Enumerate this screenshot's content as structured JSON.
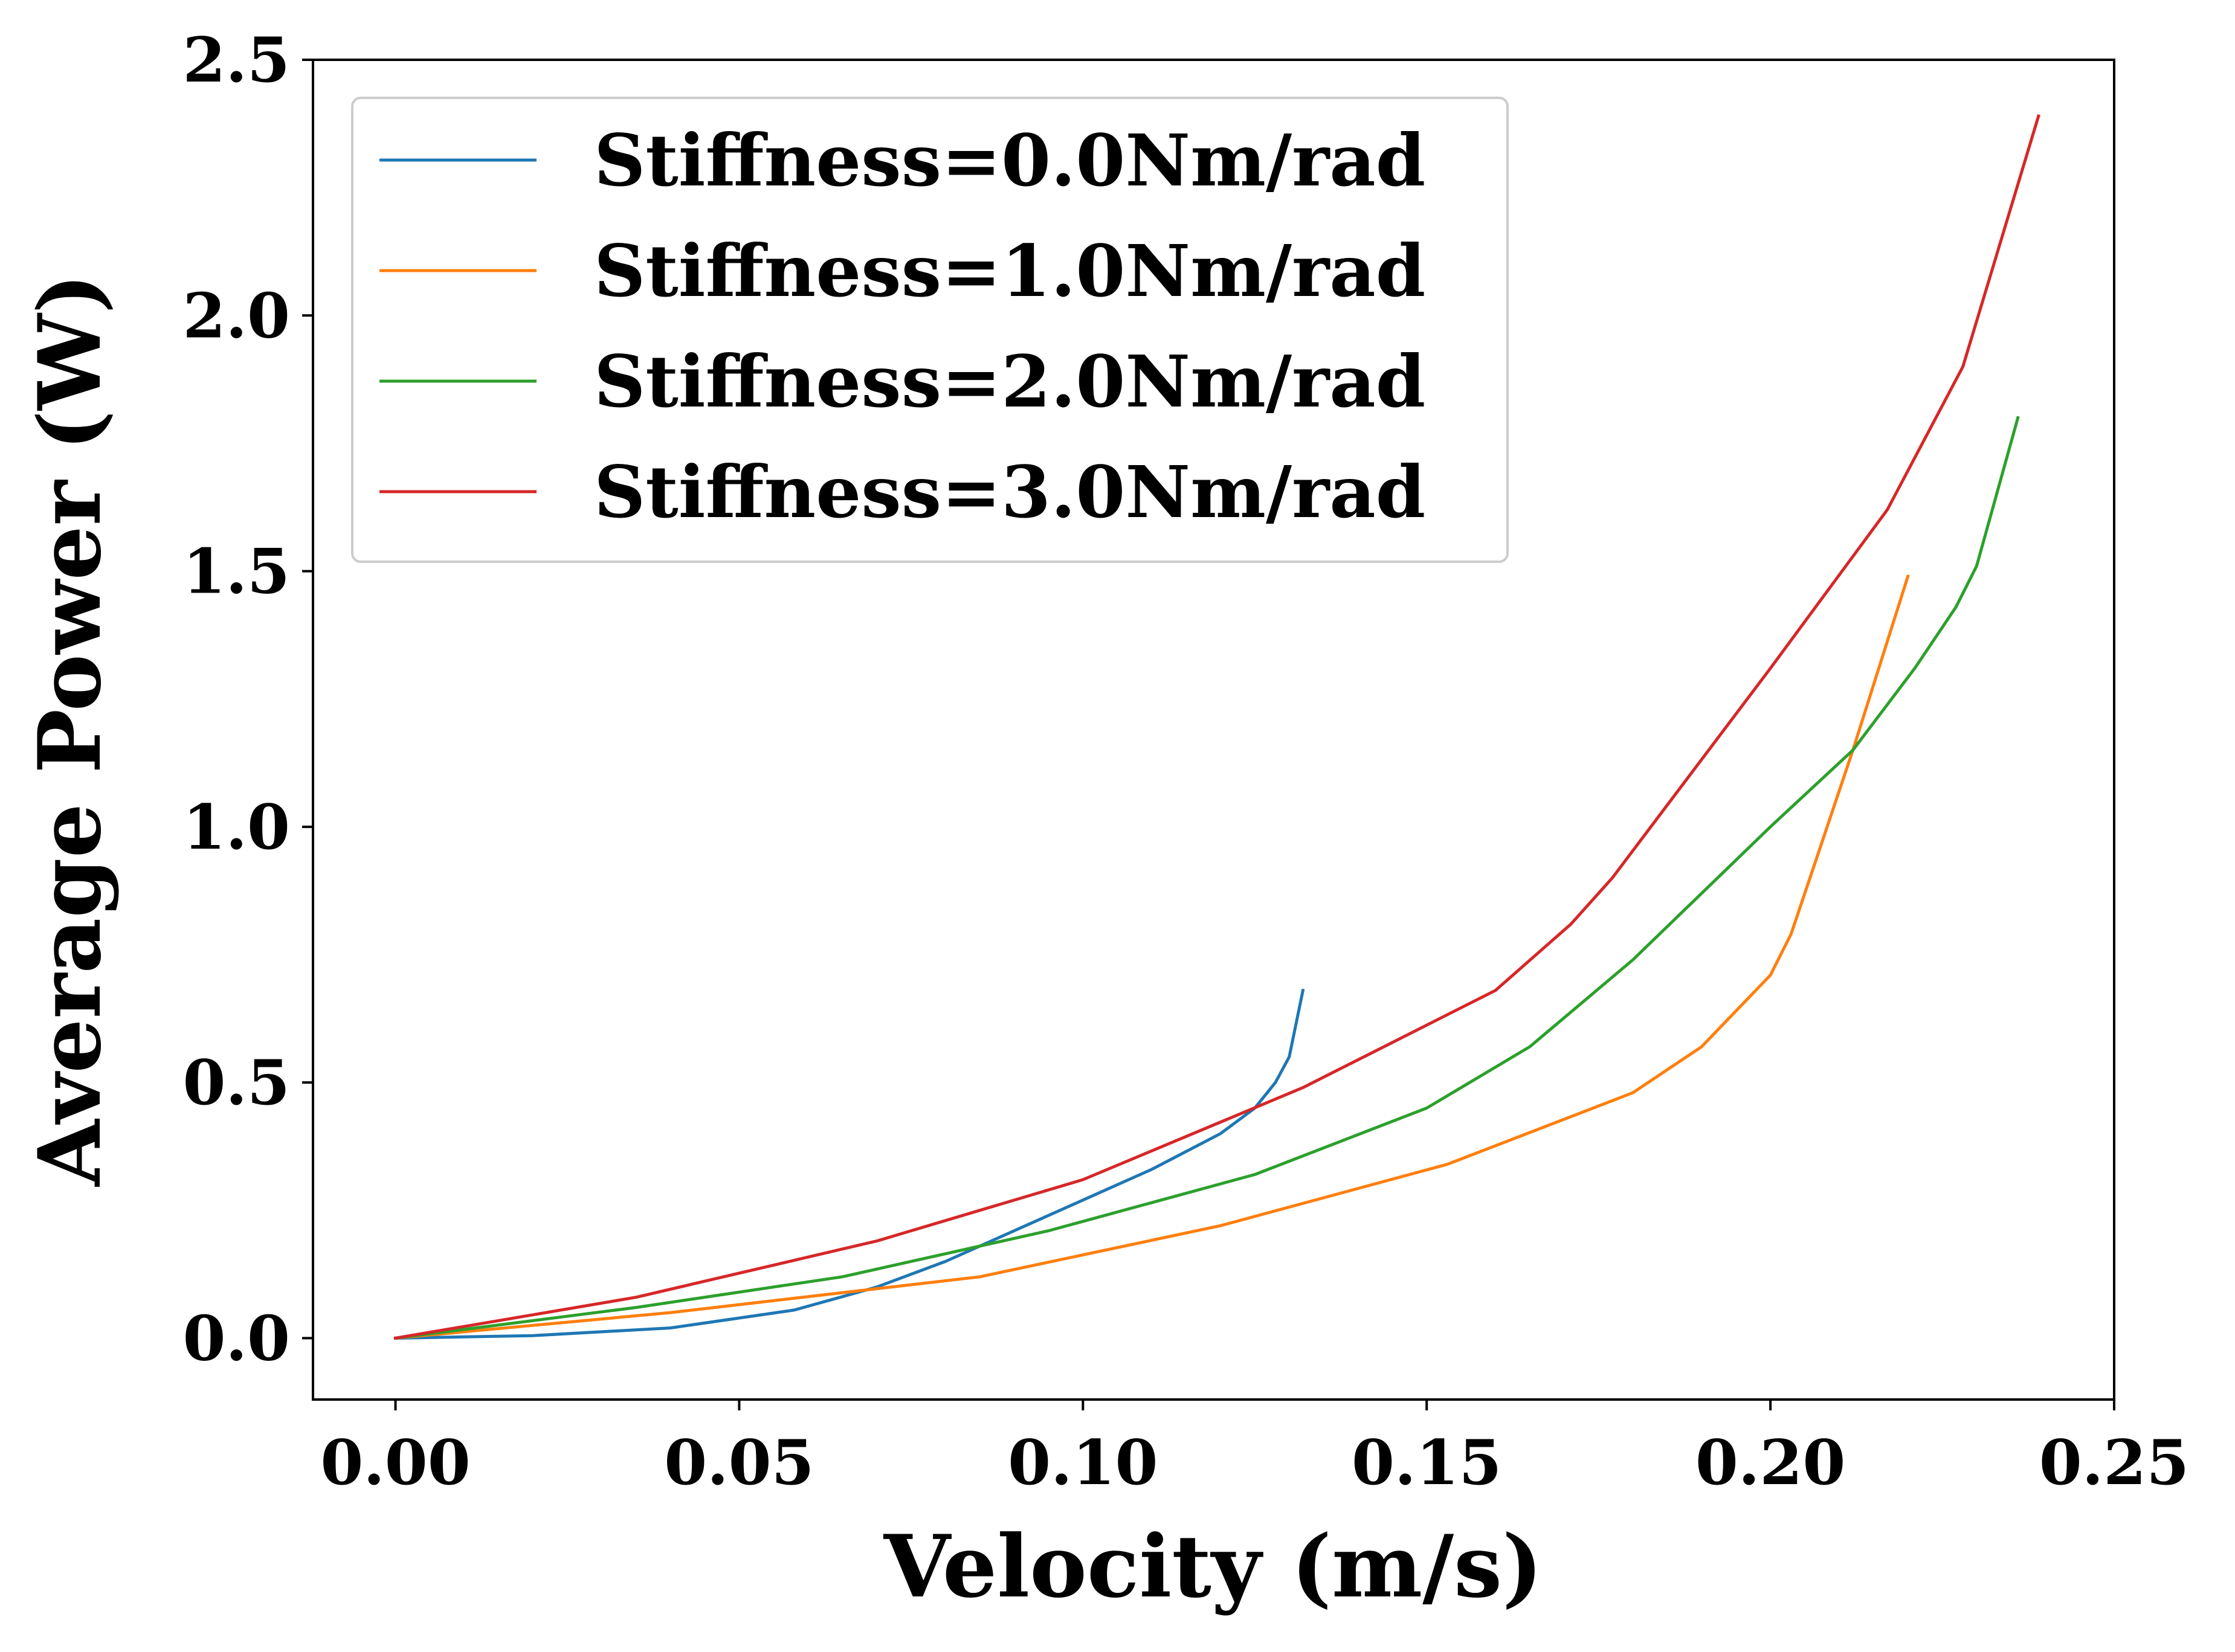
{
  "chart_data": {
    "type": "line",
    "title": "",
    "xlabel": "Velocity (m/s)",
    "ylabel": "Average Power (W)",
    "xlim": [
      -0.012,
      0.25
    ],
    "ylim": [
      -0.12,
      2.5
    ],
    "xticks": [
      0.0,
      0.05,
      0.1,
      0.15,
      0.2,
      0.25
    ],
    "xtick_labels": [
      "0.00",
      "0.05",
      "0.10",
      "0.15",
      "0.20",
      "0.25"
    ],
    "yticks": [
      0.0,
      0.5,
      1.0,
      1.5,
      2.0,
      2.5
    ],
    "ytick_labels": [
      "0.0",
      "0.5",
      "1.0",
      "1.5",
      "2.0",
      "2.5"
    ],
    "grid": false,
    "legend_position": "top-left",
    "series": [
      {
        "name": "Stiffness=0.0Nm/rad",
        "color": "#1f77b4",
        "points": [
          [
            0.0,
            0.0
          ],
          [
            0.02,
            0.005
          ],
          [
            0.04,
            0.02
          ],
          [
            0.058,
            0.055
          ],
          [
            0.07,
            0.1
          ],
          [
            0.08,
            0.15
          ],
          [
            0.09,
            0.21
          ],
          [
            0.1,
            0.27
          ],
          [
            0.11,
            0.33
          ],
          [
            0.12,
            0.4
          ],
          [
            0.125,
            0.45
          ],
          [
            0.128,
            0.5
          ],
          [
            0.13,
            0.55
          ],
          [
            0.132,
            0.68
          ]
        ]
      },
      {
        "name": "Stiffness=1.0Nm/rad",
        "color": "#ff7f0e",
        "points": [
          [
            0.0,
            0.0
          ],
          [
            0.04,
            0.05
          ],
          [
            0.085,
            0.12
          ],
          [
            0.12,
            0.22
          ],
          [
            0.153,
            0.34
          ],
          [
            0.18,
            0.48
          ],
          [
            0.19,
            0.57
          ],
          [
            0.195,
            0.64
          ],
          [
            0.2,
            0.71
          ],
          [
            0.203,
            0.79
          ],
          [
            0.207,
            0.95
          ],
          [
            0.212,
            1.15
          ],
          [
            0.22,
            1.49
          ]
        ]
      },
      {
        "name": "Stiffness=2.0Nm/rad",
        "color": "#2ca02c",
        "points": [
          [
            0.0,
            0.0
          ],
          [
            0.035,
            0.06
          ],
          [
            0.065,
            0.12
          ],
          [
            0.095,
            0.21
          ],
          [
            0.125,
            0.32
          ],
          [
            0.15,
            0.45
          ],
          [
            0.165,
            0.57
          ],
          [
            0.18,
            0.74
          ],
          [
            0.2,
            1.0
          ],
          [
            0.212,
            1.15
          ],
          [
            0.221,
            1.31
          ],
          [
            0.227,
            1.43
          ],
          [
            0.23,
            1.51
          ],
          [
            0.236,
            1.8
          ]
        ]
      },
      {
        "name": "Stiffness=3.0Nm/rad",
        "color": "#d62728",
        "points": [
          [
            0.0,
            0.0
          ],
          [
            0.035,
            0.08
          ],
          [
            0.07,
            0.19
          ],
          [
            0.1,
            0.31
          ],
          [
            0.132,
            0.49
          ],
          [
            0.16,
            0.68
          ],
          [
            0.171,
            0.81
          ],
          [
            0.177,
            0.9
          ],
          [
            0.2,
            1.31
          ],
          [
            0.217,
            1.62
          ],
          [
            0.228,
            1.9
          ],
          [
            0.239,
            2.39
          ]
        ]
      }
    ]
  }
}
